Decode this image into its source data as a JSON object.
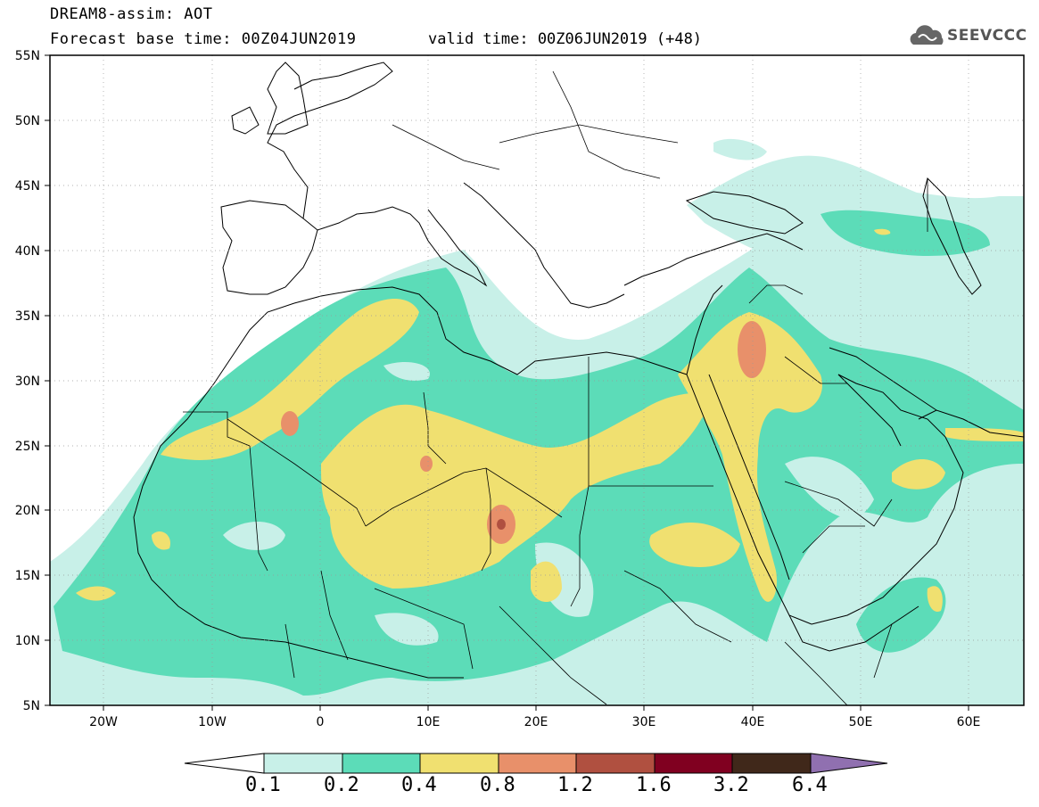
{
  "header": {
    "line1": "DREAM8-assim: AOT",
    "line2": "Forecast base time: 00Z04JUN2019",
    "valid": "valid time: 00Z06JUN2019 (+48)",
    "logo_text": "SEEVCCC",
    "logo_icon": "cloud-icon"
  },
  "map": {
    "projection": "lat-lon",
    "lon_range": [
      -25,
      65
    ],
    "lat_range": [
      5,
      55
    ],
    "lon_ticks": [
      "20W",
      "10W",
      "0",
      "10E",
      "20E",
      "30E",
      "40E",
      "50E",
      "60E"
    ],
    "lat_ticks": [
      "55N",
      "50N",
      "45N",
      "40N",
      "35N",
      "30N",
      "25N",
      "20N",
      "15N",
      "10N",
      "5N"
    ],
    "grid": "dotted",
    "variable": "Aerosol Optical Thickness"
  },
  "legend": {
    "levels": [
      "0.1",
      "0.2",
      "0.4",
      "0.8",
      "1.2",
      "1.6",
      "3.2",
      "6.4"
    ],
    "colors": [
      "#ffffff",
      "#c8f0e8",
      "#5cdcb8",
      "#f0e070",
      "#e8906a",
      "#b05040",
      "#800020",
      "#40281a",
      "#9070b0"
    ]
  }
}
